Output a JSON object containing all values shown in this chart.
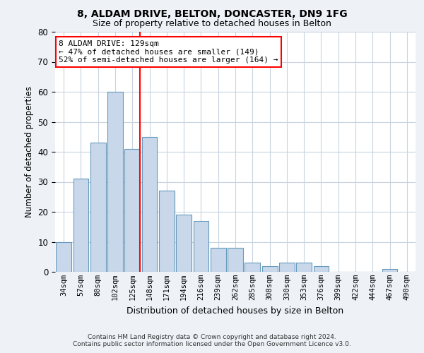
{
  "title1": "8, ALDAM DRIVE, BELTON, DONCASTER, DN9 1FG",
  "title2": "Size of property relative to detached houses in Belton",
  "xlabel": "Distribution of detached houses by size in Belton",
  "ylabel": "Number of detached properties",
  "categories": [
    "34sqm",
    "57sqm",
    "80sqm",
    "102sqm",
    "125sqm",
    "148sqm",
    "171sqm",
    "194sqm",
    "216sqm",
    "239sqm",
    "262sqm",
    "285sqm",
    "308sqm",
    "330sqm",
    "353sqm",
    "376sqm",
    "399sqm",
    "422sqm",
    "444sqm",
    "467sqm",
    "490sqm"
  ],
  "values": [
    10,
    31,
    43,
    60,
    41,
    45,
    27,
    19,
    17,
    8,
    8,
    3,
    2,
    3,
    3,
    2,
    0,
    0,
    0,
    1,
    0
  ],
  "bar_color": "#c8d8ea",
  "bar_edge_color": "#6699bb",
  "annotation_title": "8 ALDAM DRIVE: 129sqm",
  "annotation_line1": "← 47% of detached houses are smaller (149)",
  "annotation_line2": "52% of semi-detached houses are larger (164) →",
  "ylim": [
    0,
    80
  ],
  "yticks": [
    0,
    10,
    20,
    30,
    40,
    50,
    60,
    70,
    80
  ],
  "footer1": "Contains HM Land Registry data © Crown copyright and database right 2024.",
  "footer2": "Contains public sector information licensed under the Open Government Licence v3.0.",
  "bg_color": "#eef2f7",
  "plot_bg_color": "#ffffff",
  "grid_color": "#c8d4e0"
}
